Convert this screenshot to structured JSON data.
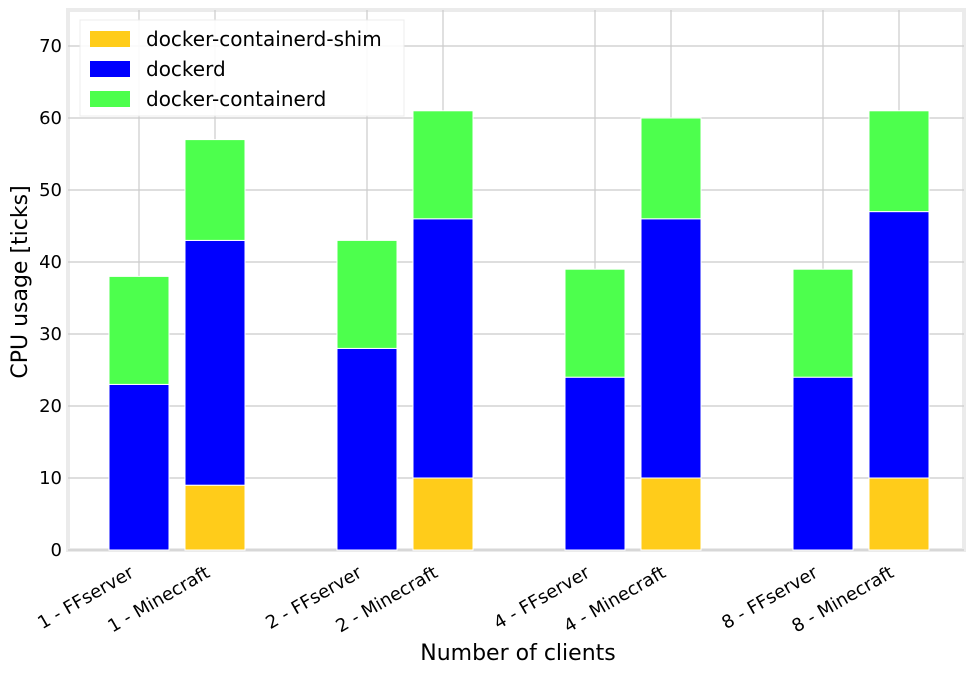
{
  "chart_data": {
    "type": "bar",
    "stacked": true,
    "title": "",
    "xlabel": "Number of clients",
    "ylabel": "CPU usage [ticks]",
    "ylim": [
      0,
      75
    ],
    "yticks": [
      0,
      10,
      20,
      30,
      40,
      50,
      60,
      70
    ],
    "grid": true,
    "legend_position": "top-left",
    "categories": [
      "1 - FFserver",
      "1 - Minecraft",
      "2 - FFserver",
      "2 - Minecraft",
      "4 - FFserver",
      "4 - Minecraft",
      "8 - FFserver",
      "8 - Minecraft"
    ],
    "series": [
      {
        "name": "docker-containerd-shim",
        "color": "#ffcc1a",
        "values": [
          0,
          9,
          0,
          10,
          0,
          10,
          0,
          10
        ]
      },
      {
        "name": "dockerd",
        "color": "#0000ff",
        "values": [
          23,
          34,
          28,
          36,
          24,
          36,
          24,
          37
        ]
      },
      {
        "name": "docker-containerd",
        "color": "#4dff4d",
        "values": [
          15,
          14,
          15,
          15,
          15,
          14,
          15,
          14
        ]
      }
    ]
  }
}
